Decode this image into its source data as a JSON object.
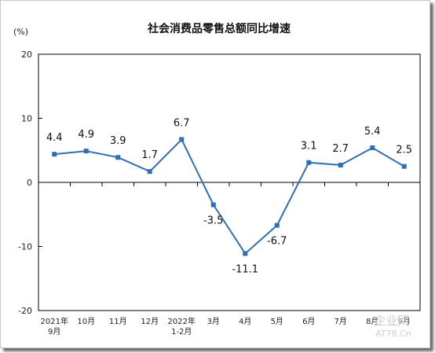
{
  "chart_data": {
    "type": "line",
    "title": "社会消费品零售总额同比增速",
    "unit": "(%)",
    "ylim": [
      -20,
      20
    ],
    "yticks": [
      "20",
      "10",
      "0",
      "-10",
      "-20"
    ],
    "categories": [
      [
        "2021年",
        "9月"
      ],
      [
        "10月"
      ],
      [
        "11月"
      ],
      [
        "12月"
      ],
      [
        "2022年",
        "1-2月"
      ],
      [
        "3月"
      ],
      [
        "4月"
      ],
      [
        "5月"
      ],
      [
        "6月"
      ],
      [
        "7月"
      ],
      [
        "8月"
      ],
      [
        "9月"
      ]
    ],
    "values": [
      4.4,
      4.9,
      3.9,
      1.7,
      6.7,
      -3.5,
      -11.1,
      -6.7,
      3.1,
      2.7,
      5.4,
      2.5
    ],
    "labels": [
      "4.4",
      "4.9",
      "3.9",
      "1.7",
      "6.7",
      "-3.5",
      "-11.1",
      "-6.7",
      "3.1",
      "2.7",
      "5.4",
      "2.5"
    ],
    "line_color": "#2e6fb7",
    "grid": false
  },
  "watermark": {
    "brand": "企业网",
    "site": "AT78.Cn"
  }
}
